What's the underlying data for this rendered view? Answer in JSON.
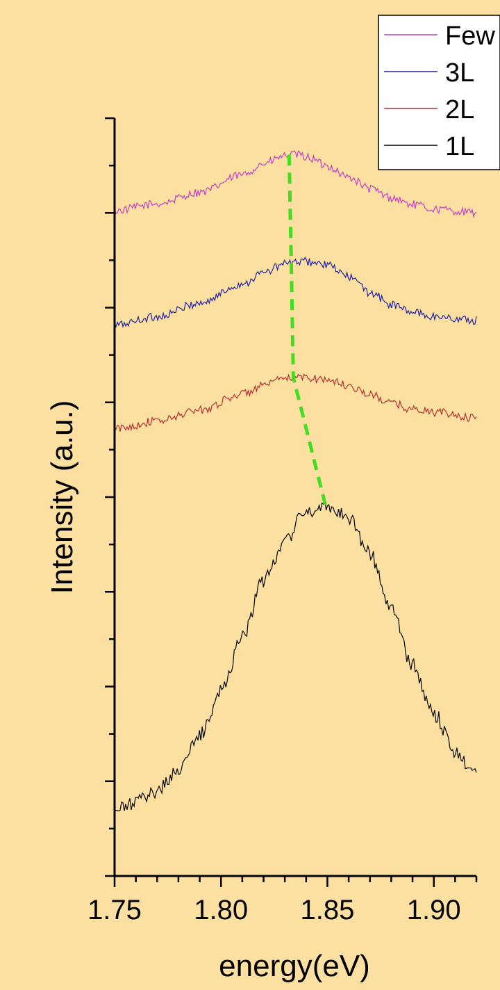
{
  "chart_data": {
    "type": "line",
    "title": "",
    "xlabel": "energy(eV)",
    "ylabel": "Intensity (a.u.)",
    "xlim": [
      1.75,
      1.92
    ],
    "ylim": [
      0,
      1
    ],
    "x_ticks": [
      "1.75",
      "1.80",
      "1.85",
      "1.90"
    ],
    "y_tick_labels_shown": false,
    "grid": false,
    "legend_position": "top-right",
    "series": [
      {
        "name": "Few",
        "color": "#c040c0",
        "x": [
          1.75,
          1.77,
          1.79,
          1.81,
          1.82,
          1.83,
          1.835,
          1.84,
          1.85,
          1.86,
          1.87,
          1.88,
          1.89,
          1.9,
          1.92
        ],
        "y": [
          0.878,
          0.887,
          0.902,
          0.925,
          0.94,
          0.95,
          0.952,
          0.949,
          0.937,
          0.922,
          0.907,
          0.895,
          0.886,
          0.88,
          0.875
        ]
      },
      {
        "name": "3L",
        "color": "#2020a0",
        "x": [
          1.75,
          1.77,
          1.79,
          1.81,
          1.82,
          1.83,
          1.84,
          1.85,
          1.86,
          1.87,
          1.88,
          1.89,
          1.9,
          1.92
        ],
        "y": [
          0.727,
          0.738,
          0.756,
          0.781,
          0.796,
          0.808,
          0.811,
          0.806,
          0.791,
          0.77,
          0.754,
          0.744,
          0.738,
          0.733
        ]
      },
      {
        "name": "2L",
        "color": "#b03030",
        "x": [
          1.75,
          1.77,
          1.79,
          1.81,
          1.82,
          1.83,
          1.84,
          1.85,
          1.86,
          1.87,
          1.88,
          1.89,
          1.9,
          1.92
        ],
        "y": [
          0.59,
          0.6,
          0.615,
          0.636,
          0.647,
          0.656,
          0.658,
          0.655,
          0.647,
          0.635,
          0.624,
          0.616,
          0.612,
          0.604
        ]
      },
      {
        "name": "1L",
        "color": "#000000",
        "x": [
          1.75,
          1.76,
          1.77,
          1.78,
          1.79,
          1.8,
          1.81,
          1.82,
          1.83,
          1.84,
          1.85,
          1.86,
          1.87,
          1.88,
          1.89,
          1.9,
          1.91,
          1.92
        ],
        "y": [
          0.085,
          0.097,
          0.113,
          0.14,
          0.185,
          0.244,
          0.317,
          0.389,
          0.444,
          0.48,
          0.49,
          0.474,
          0.425,
          0.352,
          0.277,
          0.214,
          0.166,
          0.133
        ]
      }
    ],
    "annotations": [
      {
        "type": "dashed-line",
        "color": "#44dd22",
        "points": [
          [
            1.832,
            0.952
          ],
          [
            1.833,
            0.811
          ],
          [
            1.834,
            0.658
          ],
          [
            1.849,
            0.49
          ]
        ]
      }
    ]
  }
}
